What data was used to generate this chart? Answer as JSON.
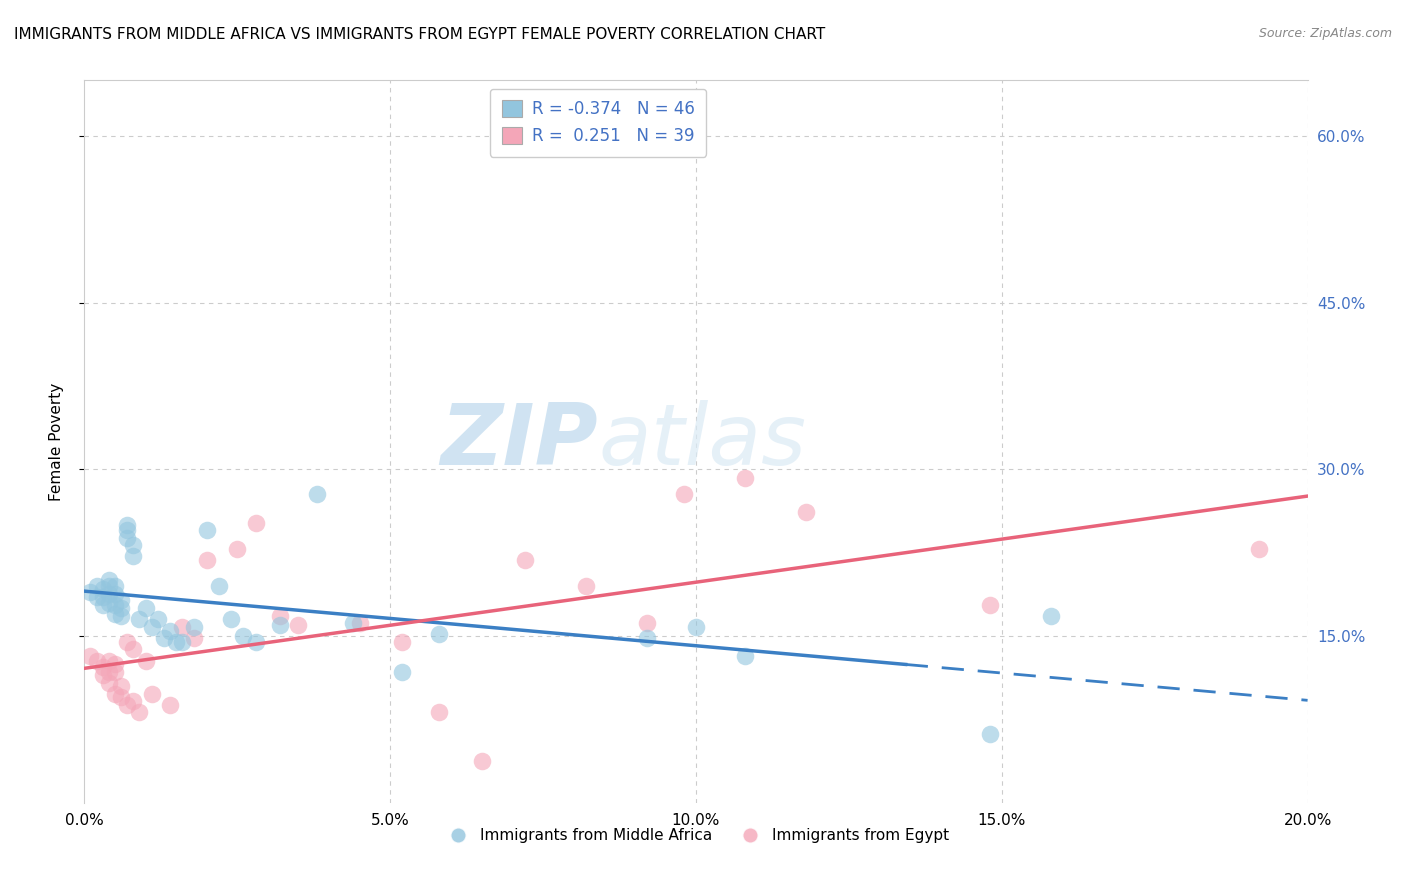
{
  "title": "IMMIGRANTS FROM MIDDLE AFRICA VS IMMIGRANTS FROM EGYPT FEMALE POVERTY CORRELATION CHART",
  "source": "Source: ZipAtlas.com",
  "ylabel_label": "Female Poverty",
  "xlim": [
    0.0,
    0.2
  ],
  "ylim": [
    0.0,
    0.65
  ],
  "xticks": [
    0.0,
    0.05,
    0.1,
    0.15,
    0.2
  ],
  "yticks": [
    0.15,
    0.3,
    0.45,
    0.6
  ],
  "ytick_labels": [
    "15.0%",
    "30.0%",
    "45.0%",
    "60.0%"
  ],
  "xtick_labels": [
    "0.0%",
    "5.0%",
    "10.0%",
    "15.0%",
    "20.0%"
  ],
  "right_ytick_labels": [
    "15.0%",
    "30.0%",
    "45.0%",
    "60.0%"
  ],
  "color_blue": "#92c5de",
  "color_pink": "#f4a6b8",
  "line_blue": "#3b7fc4",
  "line_pink": "#e8637a",
  "watermark_zip": "ZIP",
  "watermark_atlas": "atlas",
  "legend_r_blue": "-0.374",
  "legend_n_blue": "46",
  "legend_r_pink": "0.251",
  "legend_n_pink": "39",
  "legend_label_blue": "Immigrants from Middle Africa",
  "legend_label_pink": "Immigrants from Egypt",
  "blue_x": [
    0.001,
    0.002,
    0.002,
    0.003,
    0.003,
    0.003,
    0.004,
    0.004,
    0.004,
    0.004,
    0.005,
    0.005,
    0.005,
    0.005,
    0.006,
    0.006,
    0.006,
    0.007,
    0.007,
    0.007,
    0.008,
    0.008,
    0.009,
    0.01,
    0.011,
    0.012,
    0.013,
    0.014,
    0.015,
    0.016,
    0.018,
    0.02,
    0.022,
    0.024,
    0.026,
    0.028,
    0.032,
    0.038,
    0.044,
    0.052,
    0.058,
    0.092,
    0.1,
    0.108,
    0.148,
    0.158
  ],
  "blue_y": [
    0.19,
    0.185,
    0.195,
    0.192,
    0.185,
    0.178,
    0.2,
    0.195,
    0.188,
    0.18,
    0.188,
    0.195,
    0.17,
    0.178,
    0.168,
    0.175,
    0.182,
    0.25,
    0.245,
    0.238,
    0.222,
    0.232,
    0.165,
    0.175,
    0.158,
    0.165,
    0.148,
    0.155,
    0.145,
    0.145,
    0.158,
    0.245,
    0.195,
    0.165,
    0.15,
    0.145,
    0.16,
    0.278,
    0.162,
    0.118,
    0.152,
    0.148,
    0.158,
    0.132,
    0.062,
    0.168
  ],
  "pink_x": [
    0.001,
    0.002,
    0.003,
    0.003,
    0.004,
    0.004,
    0.004,
    0.005,
    0.005,
    0.005,
    0.006,
    0.006,
    0.007,
    0.007,
    0.008,
    0.008,
    0.009,
    0.01,
    0.011,
    0.014,
    0.016,
    0.018,
    0.02,
    0.025,
    0.028,
    0.032,
    0.035,
    0.045,
    0.052,
    0.058,
    0.065,
    0.072,
    0.082,
    0.092,
    0.098,
    0.108,
    0.118,
    0.148,
    0.192
  ],
  "pink_y": [
    0.132,
    0.128,
    0.122,
    0.115,
    0.128,
    0.118,
    0.108,
    0.125,
    0.118,
    0.098,
    0.095,
    0.105,
    0.088,
    0.145,
    0.138,
    0.092,
    0.082,
    0.128,
    0.098,
    0.088,
    0.158,
    0.148,
    0.218,
    0.228,
    0.252,
    0.168,
    0.16,
    0.162,
    0.145,
    0.082,
    0.038,
    0.218,
    0.195,
    0.162,
    0.278,
    0.292,
    0.262,
    0.178,
    0.228
  ]
}
